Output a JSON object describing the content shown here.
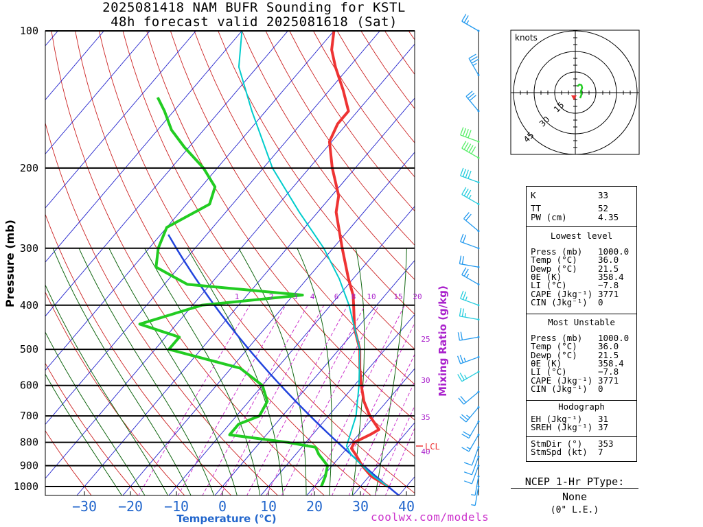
{
  "title": {
    "line1": "2025081418 NAM BUFR Sounding for KSTL",
    "line2": "48h forecast valid 2025081618 (Sat)"
  },
  "colors": {
    "temperature": "#ee3333",
    "dewpoint": "#22cc22",
    "parcel": "#00cccc",
    "isotherm": "#2222cc",
    "dry_adiabat": "#cc2222",
    "moist_adiabat": "#116611",
    "mixing_ratio": "#cc33cc",
    "parcel_path": "#2244dd",
    "mixing_label": "#aa22cc"
  },
  "chart_data": [
    {
      "type": "line",
      "name": "skew-t",
      "xlabel": "Temperature (°C)",
      "ylabel": "Pressure (mb)",
      "mixing_ratio_label": "Mixing Ratio (g/kg)",
      "x_ticks": [
        -30,
        -20,
        -10,
        0,
        10,
        20,
        30,
        40
      ],
      "y_ticks": [
        100,
        200,
        300,
        400,
        500,
        600,
        700,
        800,
        900,
        1000
      ],
      "xlim": [
        -40,
        40
      ],
      "ylim": [
        1050,
        100
      ],
      "mixing_ratio_values": [
        "1",
        "2",
        "3",
        "4",
        "6",
        "8",
        "10",
        "15",
        "20",
        "25",
        "30",
        "35",
        "40"
      ],
      "lcl_label": "LCL",
      "lcl_pressure": 815,
      "series": [
        {
          "name": "Temperature",
          "points": [
            [
              1000,
              36.0
            ],
            [
              950,
              30.5
            ],
            [
              900,
              26.5
            ],
            [
              850,
              23.0
            ],
            [
              825,
              21.0
            ],
            [
              800,
              20.5
            ],
            [
              770,
              22.5
            ],
            [
              750,
              23.5
            ],
            [
              700,
              19.0
            ],
            [
              650,
              15.0
            ],
            [
              600,
              11.5
            ],
            [
              550,
              8.0
            ],
            [
              500,
              4.5
            ],
            [
              450,
              -0.5
            ],
            [
              400,
              -5.0
            ],
            [
              380,
              -7.0
            ],
            [
              350,
              -11.0
            ],
            [
              300,
              -18.0
            ],
            [
              250,
              -26.0
            ],
            [
              230,
              -28.5
            ],
            [
              200,
              -35.0
            ],
            [
              175,
              -40.5
            ],
            [
              160,
              -42.0
            ],
            [
              150,
              -42.0
            ],
            [
              135,
              -47.0
            ],
            [
              120,
              -53.0
            ],
            [
              110,
              -57.0
            ],
            [
              100,
              -60.0
            ]
          ]
        },
        {
          "name": "Dewpoint",
          "points": [
            [
              1000,
              21.5
            ],
            [
              950,
              20.5
            ],
            [
              900,
              19.0
            ],
            [
              850,
              15.0
            ],
            [
              820,
              13.0
            ],
            [
              800,
              6.0
            ],
            [
              770,
              -8.0
            ],
            [
              730,
              -8.0
            ],
            [
              700,
              -5.0
            ],
            [
              650,
              -6.0
            ],
            [
              600,
              -10.0
            ],
            [
              550,
              -18.0
            ],
            [
              500,
              -37.0
            ],
            [
              470,
              -37.0
            ],
            [
              440,
              -48.0
            ],
            [
              400,
              -38.0
            ],
            [
              380,
              -18.0
            ],
            [
              360,
              -45.0
            ],
            [
              330,
              -55.0
            ],
            [
              300,
              -58.0
            ],
            [
              270,
              -60.0
            ],
            [
              240,
              -55.0
            ],
            [
              220,
              -57.0
            ],
            [
              200,
              -63.0
            ],
            [
              180,
              -71.0
            ],
            [
              165,
              -77.0
            ],
            [
              150,
              -82.0
            ],
            [
              140,
              -86.0
            ]
          ]
        },
        {
          "name": "Parcel",
          "points": [
            [
              1000,
              36.0
            ],
            [
              950,
              31.0
            ],
            [
              900,
              26.5
            ],
            [
              850,
              22.0
            ],
            [
              815,
              19.5
            ],
            [
              700,
              16.0
            ],
            [
              600,
              11.0
            ],
            [
              500,
              4.5
            ],
            [
              400,
              -6.0
            ],
            [
              350,
              -13.0
            ],
            [
              300,
              -22.0
            ],
            [
              250,
              -34.0
            ],
            [
              200,
              -48.0
            ],
            [
              150,
              -63.0
            ],
            [
              120,
              -74.0
            ],
            [
              100,
              -80.0
            ]
          ]
        }
      ]
    },
    {
      "type": "scatter",
      "name": "hodograph",
      "units_label": "knots",
      "ring_labels": [
        "15",
        "30",
        "45"
      ],
      "points": [
        [
          1.5,
          4.5
        ],
        [
          3.0,
          6.0
        ],
        [
          4.5,
          5.5
        ],
        [
          5.0,
          3.5
        ],
        [
          4.0,
          1.0
        ],
        [
          4.5,
          -1.5
        ],
        [
          3.5,
          -4.0
        ]
      ],
      "storm_motion": [
        -1.0,
        -4.0
      ]
    }
  ],
  "indices": {
    "k": {
      "label": "K",
      "value": "33"
    },
    "tt": {
      "label": "TT",
      "value": "52"
    },
    "pw": {
      "label": "PW (cm)",
      "value": "4.35"
    },
    "lowest": {
      "title": "Lowest level",
      "rows": [
        {
          "label": "Press (mb)",
          "value": "1000.0"
        },
        {
          "label": "Temp (°C)",
          "value": "36.0"
        },
        {
          "label": "Dewp (°C)",
          "value": "21.5"
        },
        {
          "label": "θE (K)",
          "value": "358.4"
        },
        {
          "label": "LI (°C)",
          "value": "−7.8"
        },
        {
          "label": "CAPE (Jkg⁻¹)",
          "value": "3771"
        },
        {
          "label": "CIN (Jkg⁻¹)",
          "value": "0"
        }
      ]
    },
    "unstable": {
      "title": "Most Unstable",
      "rows": [
        {
          "label": "Press (mb)",
          "value": "1000.0"
        },
        {
          "label": "Temp (°C)",
          "value": "36.0"
        },
        {
          "label": "Dewp (°C)",
          "value": "21.5"
        },
        {
          "label": "θE (K)",
          "value": "358.4"
        },
        {
          "label": "LI (°C)",
          "value": "−7.8"
        },
        {
          "label": "CAPE (Jkg⁻¹)",
          "value": "3771"
        },
        {
          "label": "CIN (Jkg⁻¹)",
          "value": "0"
        }
      ]
    },
    "hodo": {
      "title": "Hodograph",
      "rows": [
        {
          "label": "EH (Jkg⁻¹)",
          "value": "31"
        },
        {
          "label": "SREH (Jkg⁻¹)",
          "value": "37"
        }
      ]
    },
    "storm": {
      "rows": [
        {
          "label": "StmDir (°)",
          "value": "353"
        },
        {
          "label": "StmSpd (kt)",
          "value": "7"
        }
      ]
    }
  },
  "ptype": {
    "title": "NCEP 1-Hr PType:",
    "value": "None",
    "amount": "(0\" L.E.)"
  },
  "credit": "coolwx.com/models"
}
